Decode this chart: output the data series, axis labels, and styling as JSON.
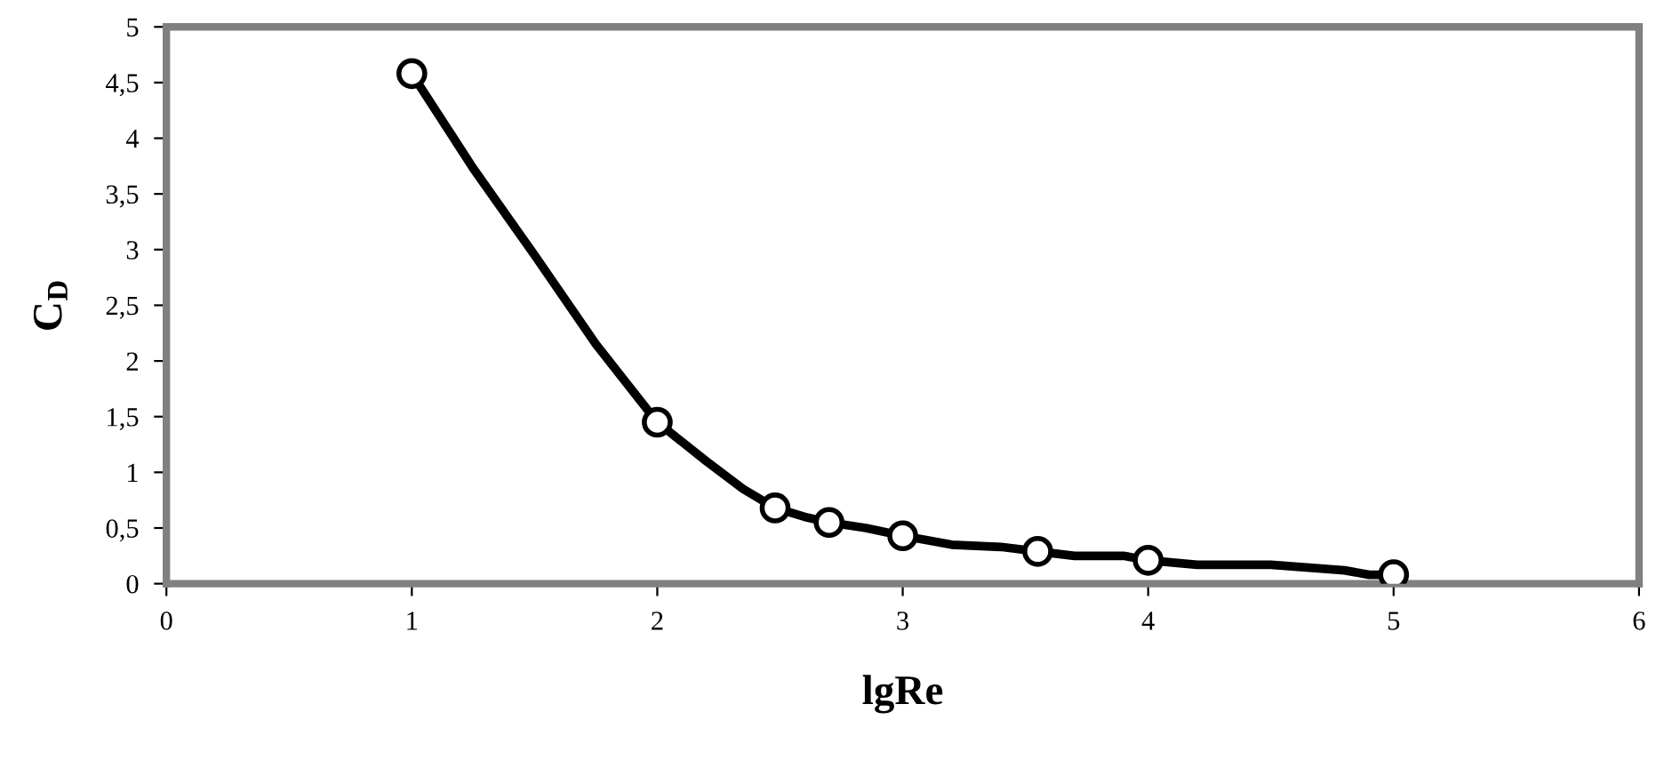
{
  "chart_data": {
    "type": "line",
    "xlabel": "lgRe",
    "ylabel": "C$_{D}$",
    "xlim": [
      0,
      6
    ],
    "xticks": [
      0,
      1,
      2,
      3,
      4,
      5,
      6
    ],
    "ylim": [
      0,
      5
    ],
    "yticks": [
      0,
      {
        "value": 0.5,
        "label": "0,5"
      },
      1,
      {
        "value": 1.5,
        "label": "1,5"
      },
      2,
      {
        "value": 2.5,
        "label": "2,5"
      },
      3,
      {
        "value": 3.5,
        "label": "3,5"
      },
      4,
      {
        "value": 4.5,
        "label": "4,5"
      },
      5
    ],
    "grid": false,
    "legend": false,
    "series": [
      {
        "color": "#000000",
        "marker": "none",
        "line_style": "solid",
        "x": [
          1,
          1.25,
          1.5,
          1.75,
          2,
          2.2,
          2.35,
          2.48,
          2.6,
          2.7,
          2.85,
          3,
          3.2,
          3.4,
          3.55,
          3.7,
          3.9,
          4,
          4.2,
          4.5,
          4.8,
          4.9,
          5
        ],
        "values": [
          4.58,
          3.73,
          2.95,
          2.15,
          1.45,
          1.1,
          0.85,
          0.68,
          0.6,
          0.55,
          0.5,
          0.43,
          0.35,
          0.33,
          0.29,
          0.25,
          0.25,
          0.21,
          0.17,
          0.17,
          0.12,
          0.08,
          0.08
        ]
      },
      {
        "type": "scatter",
        "color": "#000000",
        "marker": "circle",
        "x": [
          1,
          2,
          2.48,
          2.7,
          3,
          3.55,
          4,
          5
        ],
        "values": [
          4.58,
          1.45,
          0.68,
          0.55,
          0.43,
          0.29,
          0.21,
          0.08
        ]
      }
    ]
  }
}
